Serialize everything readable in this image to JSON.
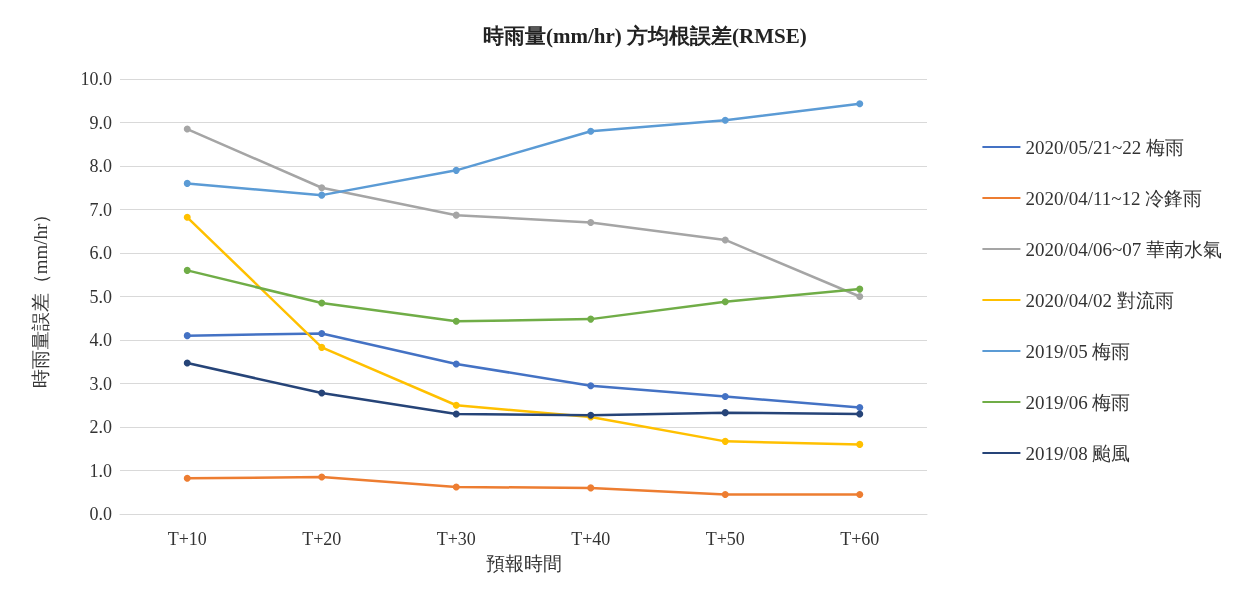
{
  "chart_data": {
    "type": "line",
    "title": "時雨量(mm/hr) 方均根誤差(RMSE)",
    "xlabel": "預報時間",
    "ylabel": "時雨量誤差（mm/hr）",
    "categories": [
      "T+10",
      "T+20",
      "T+30",
      "T+40",
      "T+50",
      "T+60"
    ],
    "series": [
      {
        "name": "2020/05/21~22 梅雨",
        "color": "#4472c4",
        "values": [
          4.1,
          4.15,
          3.45,
          2.95,
          2.7,
          2.45
        ]
      },
      {
        "name": "2020/04/11~12 冷鋒雨",
        "color": "#ed7d31",
        "values": [
          0.82,
          0.85,
          0.62,
          0.6,
          0.45,
          0.45
        ]
      },
      {
        "name": "2020/04/06~07 華南水氣",
        "color": "#a5a5a5",
        "values": [
          8.85,
          7.5,
          6.87,
          6.7,
          6.3,
          5.0
        ]
      },
      {
        "name": "2020/04/02 對流雨",
        "color": "#ffc000",
        "values": [
          6.82,
          3.83,
          2.5,
          2.23,
          1.67,
          1.6
        ]
      },
      {
        "name": "2019/05 梅雨",
        "color": "#5b9bd5",
        "values": [
          7.6,
          7.33,
          7.9,
          8.8,
          9.05,
          9.43
        ]
      },
      {
        "name": "2019/06 梅雨",
        "color": "#70ad47",
        "values": [
          5.6,
          4.85,
          4.43,
          4.48,
          4.88,
          5.17
        ]
      },
      {
        "name": "2019/08 颱風",
        "color": "#264478",
        "values": [
          3.47,
          2.78,
          2.3,
          2.27,
          2.33,
          2.3
        ]
      }
    ],
    "ylim": [
      0,
      10
    ],
    "yticks": [
      {
        "value": 0,
        "label": "0.0"
      },
      {
        "value": 1,
        "label": "1.0"
      },
      {
        "value": 2,
        "label": "2.0"
      },
      {
        "value": 3,
        "label": "3.0"
      },
      {
        "value": 4,
        "label": "4.0"
      },
      {
        "value": 5,
        "label": "5.0"
      },
      {
        "value": 6,
        "label": "6.0"
      },
      {
        "value": 7,
        "label": "7.0"
      },
      {
        "value": 8,
        "label": "8.0"
      },
      {
        "value": 9,
        "label": "9.0"
      },
      {
        "value": 10,
        "label": "10.0"
      }
    ],
    "grid": "y",
    "legend": "right",
    "marker": "circle",
    "line_style": "solid"
  }
}
